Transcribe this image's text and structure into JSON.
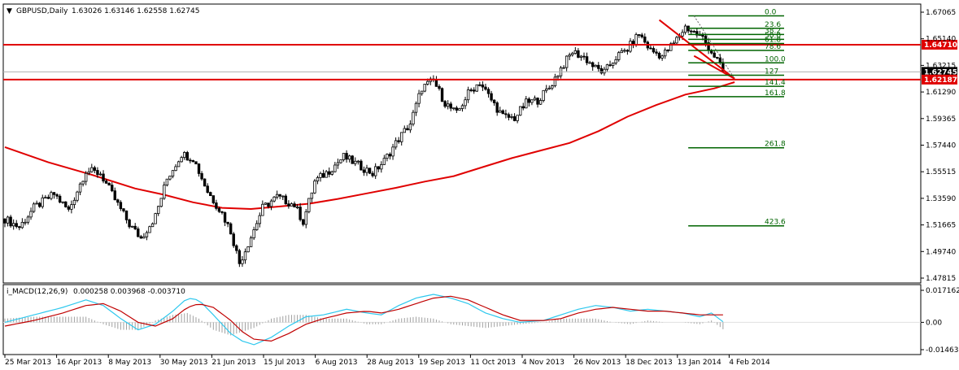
{
  "header": {
    "symbol": "GBPUSD,Daily",
    "ohlc": "1.63026 1.63146 1.62558 1.62745"
  },
  "macd_header": {
    "name": "i_MACD(12,26,9)",
    "values": "0.000258 0.003968 -0.003710"
  },
  "colors": {
    "bullish": "#ffffff",
    "bearish": "#000000",
    "ma": "#e00000",
    "level": "#e00000",
    "fib": "#006400",
    "macd_main": "#2ec8ee",
    "macd_signal": "#c00000",
    "histogram": "#a0a0a0"
  },
  "chart_data": [
    {
      "type": "candlestick",
      "title": "GBPUSD,Daily",
      "x_labels": [
        "25 Mar 2013",
        "16 Apr 2013",
        "8 May 2013",
        "30 May 2013",
        "21 Jun 2013",
        "15 Jul 2013",
        "6 Aug 2013",
        "28 Aug 2013",
        "19 Sep 2013",
        "11 Oct 2013",
        "4 Nov 2013",
        "26 Nov 2013",
        "18 Dec 2013",
        "13 Jan 2014",
        "4 Feb 2014"
      ],
      "y_ticks": [
        "1.67065",
        "1.65140",
        "1.63215",
        "1.61290",
        "1.59365",
        "1.57440",
        "1.55515",
        "1.53590",
        "1.51665",
        "1.49740",
        "1.47815"
      ],
      "ylim": [
        1.47815,
        1.67065
      ],
      "price_tags": [
        {
          "value": 1.6471,
          "label": "1.64710",
          "color": "#e00000"
        },
        {
          "value": 1.62745,
          "label": "1.62745",
          "color": "#000000"
        },
        {
          "value": 1.62187,
          "label": "1.62187",
          "color": "#e00000"
        }
      ],
      "horizontal_levels": [
        1.6471,
        1.62187
      ],
      "moving_average": [
        [
          0,
          1.573
        ],
        [
          15,
          1.562
        ],
        [
          30,
          1.553
        ],
        [
          45,
          1.543
        ],
        [
          55,
          1.5385
        ],
        [
          65,
          1.533
        ],
        [
          75,
          1.529
        ],
        [
          85,
          1.5282
        ],
        [
          95,
          1.53
        ],
        [
          105,
          1.532
        ],
        [
          115,
          1.5355
        ],
        [
          125,
          1.5395
        ],
        [
          135,
          1.5435
        ],
        [
          145,
          1.548
        ],
        [
          155,
          1.552
        ],
        [
          165,
          1.5585
        ],
        [
          175,
          1.565
        ],
        [
          185,
          1.5705
        ],
        [
          195,
          1.576
        ],
        [
          205,
          1.5845
        ],
        [
          215,
          1.595
        ],
        [
          225,
          1.6035
        ],
        [
          235,
          1.611
        ],
        [
          245,
          1.6155
        ],
        [
          252,
          1.62
        ]
      ],
      "candles_key_ohlc": [
        [
          0,
          1.521
        ],
        [
          5,
          1.515
        ],
        [
          10,
          1.529
        ],
        [
          17,
          1.539
        ],
        [
          22,
          1.527
        ],
        [
          28,
          1.556
        ],
        [
          33,
          1.554
        ],
        [
          38,
          1.535
        ],
        [
          43,
          1.517
        ],
        [
          47,
          1.507
        ],
        [
          52,
          1.523
        ],
        [
          56,
          1.55
        ],
        [
          61,
          1.568
        ],
        [
          65,
          1.565
        ],
        [
          70,
          1.541
        ],
        [
          75,
          1.525
        ],
        [
          78,
          1.512
        ],
        [
          81,
          1.489
        ],
        [
          85,
          1.508
        ],
        [
          89,
          1.529
        ],
        [
          94,
          1.537
        ],
        [
          100,
          1.531
        ],
        [
          103,
          1.519
        ],
        [
          107,
          1.548
        ],
        [
          112,
          1.556
        ],
        [
          117,
          1.566
        ],
        [
          122,
          1.56
        ],
        [
          127,
          1.554
        ],
        [
          131,
          1.563
        ],
        [
          136,
          1.579
        ],
        [
          140,
          1.59
        ],
        [
          144,
          1.616
        ],
        [
          148,
          1.621
        ],
        [
          152,
          1.605
        ],
        [
          156,
          1.597
        ],
        [
          160,
          1.612
        ],
        [
          164,
          1.62
        ],
        [
          168,
          1.607
        ],
        [
          172,
          1.595
        ],
        [
          176,
          1.594
        ],
        [
          180,
          1.605
        ],
        [
          184,
          1.607
        ],
        [
          188,
          1.616
        ],
        [
          192,
          1.63
        ],
        [
          196,
          1.642
        ],
        [
          200,
          1.638
        ],
        [
          204,
          1.63
        ],
        [
          207,
          1.627
        ],
        [
          211,
          1.638
        ],
        [
          215,
          1.644
        ],
        [
          219,
          1.655
        ],
        [
          223,
          1.643
        ],
        [
          227,
          1.639
        ],
        [
          231,
          1.648
        ],
        [
          235,
          1.66
        ],
        [
          238,
          1.656
        ],
        [
          241,
          1.652
        ],
        [
          244,
          1.642
        ],
        [
          246,
          1.636
        ],
        [
          248,
          1.6275
        ]
      ]
    },
    {
      "type": "fibonacci",
      "levels": [
        {
          "label": "0.0",
          "value": 1.668
        },
        {
          "label": "23.6",
          "value": 1.659
        },
        {
          "label": "38.2",
          "value": 1.6545
        },
        {
          "label": "50.0",
          "value": 1.651
        },
        {
          "label": "61.8",
          "value": 1.648
        },
        {
          "label": "78.6",
          "value": 1.643
        },
        {
          "label": "100.0",
          "value": 1.634
        },
        {
          "label": "127",
          "value": 1.625
        },
        {
          "label": "141.4",
          "value": 1.617
        },
        {
          "label": "161.8",
          "value": 1.6095
        },
        {
          "label": "261.8",
          "value": 1.5725
        },
        {
          "label": "423.6",
          "value": 1.516
        }
      ]
    },
    {
      "type": "macd",
      "title": "i_MACD(12,26,9)",
      "y_ticks": [
        "0.017162",
        "0.00",
        "-0.014638"
      ],
      "ylim": [
        -0.014638,
        0.017162
      ],
      "main": [
        [
          0,
          0.0
        ],
        [
          10,
          0.004
        ],
        [
          20,
          0.008
        ],
        [
          28,
          0.012
        ],
        [
          34,
          0.009
        ],
        [
          40,
          0.002
        ],
        [
          46,
          -0.004
        ],
        [
          52,
          -0.001
        ],
        [
          58,
          0.006
        ],
        [
          63,
          0.013
        ],
        [
          67,
          0.012
        ],
        [
          72,
          0.004
        ],
        [
          78,
          -0.006
        ],
        [
          82,
          -0.01
        ],
        [
          86,
          -0.012
        ],
        [
          92,
          -0.008
        ],
        [
          98,
          -0.002
        ],
        [
          104,
          0.003
        ],
        [
          110,
          0.004
        ],
        [
          118,
          0.007
        ],
        [
          125,
          0.005
        ],
        [
          130,
          0.004
        ],
        [
          136,
          0.009
        ],
        [
          142,
          0.013
        ],
        [
          148,
          0.015
        ],
        [
          154,
          0.013
        ],
        [
          160,
          0.01
        ],
        [
          166,
          0.005
        ],
        [
          172,
          0.002
        ],
        [
          178,
          0.0
        ],
        [
          186,
          0.001
        ],
        [
          192,
          0.004
        ],
        [
          198,
          0.007
        ],
        [
          204,
          0.009
        ],
        [
          210,
          0.008
        ],
        [
          216,
          0.006
        ],
        [
          222,
          0.007
        ],
        [
          228,
          0.006
        ],
        [
          234,
          0.005
        ],
        [
          240,
          0.003
        ],
        [
          244,
          0.005
        ],
        [
          248,
          0.0003
        ]
      ],
      "signal": [
        [
          0,
          -0.002
        ],
        [
          10,
          0.001
        ],
        [
          20,
          0.005
        ],
        [
          28,
          0.009
        ],
        [
          34,
          0.01
        ],
        [
          40,
          0.006
        ],
        [
          46,
          0.0
        ],
        [
          52,
          -0.002
        ],
        [
          58,
          0.002
        ],
        [
          63,
          0.008
        ],
        [
          67,
          0.01
        ],
        [
          72,
          0.008
        ],
        [
          78,
          0.001
        ],
        [
          82,
          -0.005
        ],
        [
          86,
          -0.009
        ],
        [
          92,
          -0.01
        ],
        [
          98,
          -0.006
        ],
        [
          104,
          -0.001
        ],
        [
          110,
          0.002
        ],
        [
          118,
          0.005
        ],
        [
          125,
          0.006
        ],
        [
          130,
          0.005
        ],
        [
          136,
          0.007
        ],
        [
          142,
          0.01
        ],
        [
          148,
          0.013
        ],
        [
          154,
          0.014
        ],
        [
          160,
          0.012
        ],
        [
          166,
          0.008
        ],
        [
          172,
          0.004
        ],
        [
          178,
          0.001
        ],
        [
          186,
          0.001
        ],
        [
          192,
          0.002
        ],
        [
          198,
          0.005
        ],
        [
          204,
          0.007
        ],
        [
          210,
          0.008
        ],
        [
          216,
          0.007
        ],
        [
          222,
          0.006
        ],
        [
          228,
          0.006
        ],
        [
          234,
          0.005
        ],
        [
          240,
          0.004
        ],
        [
          244,
          0.004
        ],
        [
          248,
          0.004
        ]
      ]
    }
  ]
}
